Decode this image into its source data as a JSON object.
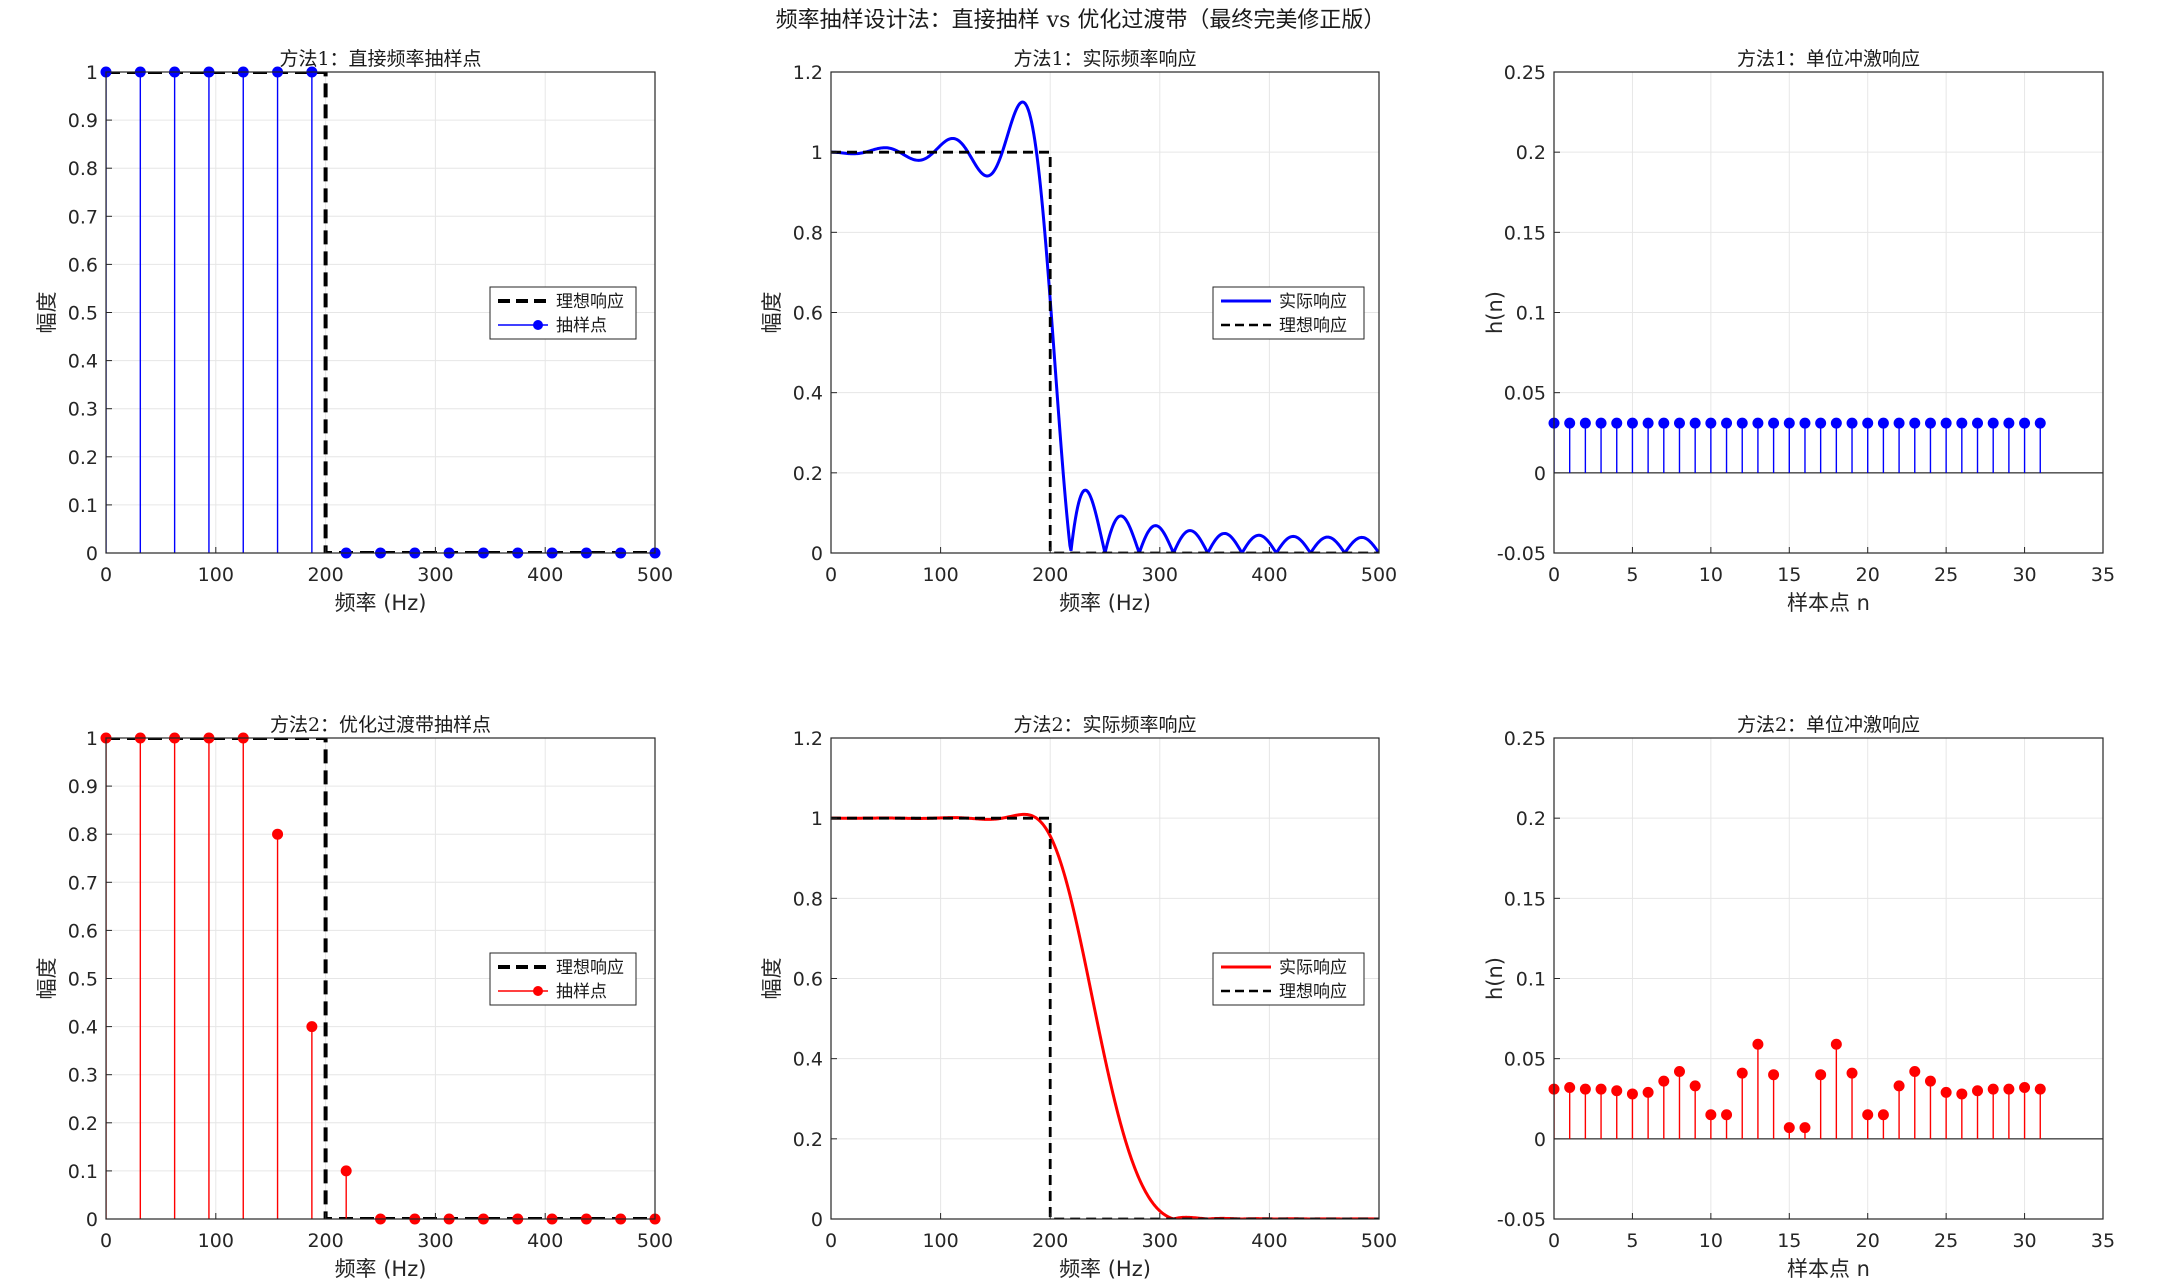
{
  "figure": {
    "suptitle": "频率抽样设计法：直接抽样 vs 优化过渡带（最终完美修正版）"
  },
  "chart_data": [
    {
      "id": "m1-samples",
      "type": "stem",
      "title": "方法1：直接频率抽样点",
      "xlabel": "频率 (Hz)",
      "ylabel": "幅度",
      "xlim": [
        0,
        500
      ],
      "ylim": [
        0,
        1
      ],
      "xticks": [
        0,
        100,
        200,
        300,
        400,
        500
      ],
      "yticks": [
        0,
        0.1,
        0.2,
        0.3,
        0.4,
        0.5,
        0.6,
        0.7,
        0.8,
        0.9,
        1
      ],
      "ytick_labels": [
        "0",
        "0.1",
        "0.2",
        "0.3",
        "0.4",
        "0.5",
        "0.6",
        "0.7",
        "0.8",
        "0.9",
        "1"
      ],
      "grid": true,
      "legend": {
        "placement": "right",
        "entries": [
          "理想响应",
          "抽样点"
        ]
      },
      "series": [
        {
          "name": "理想响应",
          "kind": "ideal",
          "x": [
            0,
            200,
            200,
            500
          ],
          "y": [
            1,
            1,
            0,
            0
          ],
          "color": "#000000"
        },
        {
          "name": "抽样点",
          "kind": "stem",
          "color": "#0000ff",
          "x": [
            0,
            31.25,
            62.5,
            93.75,
            125,
            156.25,
            187.5,
            218.75,
            250,
            281.25,
            312.5,
            343.75,
            375,
            406.25,
            437.5,
            468.75,
            500
          ],
          "y": [
            1,
            1,
            1,
            1,
            1,
            1,
            1,
            0,
            0,
            0,
            0,
            0,
            0,
            0,
            0,
            0,
            0
          ]
        }
      ]
    },
    {
      "id": "m1-response",
      "type": "line",
      "title": "方法1：实际频率响应",
      "xlabel": "频率 (Hz)",
      "ylabel": "幅度",
      "xlim": [
        0,
        500
      ],
      "ylim": [
        0,
        1.2
      ],
      "xticks": [
        0,
        100,
        200,
        300,
        400,
        500
      ],
      "yticks": [
        0,
        0.2,
        0.4,
        0.6,
        0.8,
        1,
        1.2
      ],
      "ytick_labels": [
        "0",
        "0.2",
        "0.4",
        "0.6",
        "0.8",
        "1",
        "1.2"
      ],
      "grid": true,
      "legend": {
        "placement": "right",
        "entries": [
          "实际响应",
          "理想响应"
        ]
      },
      "series": [
        {
          "name": "实际响应",
          "kind": "response",
          "color": "#0000ff",
          "transition": []
        },
        {
          "name": "理想响应",
          "kind": "ideal",
          "x": [
            0,
            200,
            200,
            500
          ],
          "y": [
            1,
            1,
            0,
            0
          ],
          "color": "#000000"
        }
      ]
    },
    {
      "id": "m1-impulse",
      "type": "stem",
      "title": "方法1：单位冲激响应",
      "xlabel": "样本点 n",
      "ylabel": "h(n)",
      "xlim": [
        0,
        35
      ],
      "ylim": [
        -0.05,
        0.25
      ],
      "xticks": [
        0,
        5,
        10,
        15,
        20,
        25,
        30,
        35
      ],
      "yticks": [
        -0.05,
        0,
        0.05,
        0.1,
        0.15,
        0.2,
        0.25
      ],
      "ytick_labels": [
        "-0.05",
        "0",
        "0.05",
        "0.1",
        "0.15",
        "0.2",
        "0.25"
      ],
      "grid": true,
      "baseline": true,
      "legend": null,
      "series": [
        {
          "name": "h(n)",
          "kind": "stem",
          "color": "#0000ff",
          "x": [
            0,
            1,
            2,
            3,
            4,
            5,
            6,
            7,
            8,
            9,
            10,
            11,
            12,
            13,
            14,
            15,
            16,
            17,
            18,
            19,
            20,
            21,
            22,
            23,
            24,
            25,
            26,
            27,
            28,
            29,
            30,
            31
          ],
          "y": [
            0.031,
            0.031,
            0.031,
            0.031,
            0.031,
            0.031,
            0.031,
            0.031,
            0.031,
            0.031,
            0.031,
            0.031,
            0.031,
            0.031,
            0.031,
            0.031,
            0.031,
            0.031,
            0.031,
            0.031,
            0.031,
            0.031,
            0.031,
            0.031,
            0.031,
            0.031,
            0.031,
            0.031,
            0.031,
            0.031,
            0.031,
            0.031
          ]
        }
      ]
    },
    {
      "id": "m2-samples",
      "type": "stem",
      "title": "方法2：优化过渡带抽样点",
      "xlabel": "频率 (Hz)",
      "ylabel": "幅度",
      "xlim": [
        0,
        500
      ],
      "ylim": [
        0,
        1
      ],
      "xticks": [
        0,
        100,
        200,
        300,
        400,
        500
      ],
      "yticks": [
        0,
        0.1,
        0.2,
        0.3,
        0.4,
        0.5,
        0.6,
        0.7,
        0.8,
        0.9,
        1
      ],
      "ytick_labels": [
        "0",
        "0.1",
        "0.2",
        "0.3",
        "0.4",
        "0.5",
        "0.6",
        "0.7",
        "0.8",
        "0.9",
        "1"
      ],
      "grid": true,
      "legend": {
        "placement": "right",
        "entries": [
          "理想响应",
          "抽样点"
        ]
      },
      "series": [
        {
          "name": "理想响应",
          "kind": "ideal",
          "x": [
            0,
            200,
            200,
            500
          ],
          "y": [
            1,
            1,
            0,
            0
          ],
          "color": "#000000"
        },
        {
          "name": "抽样点",
          "kind": "stem",
          "color": "#ff0000",
          "x": [
            0,
            31.25,
            62.5,
            93.75,
            125,
            156.25,
            187.5,
            218.75,
            250,
            281.25,
            312.5,
            343.75,
            375,
            406.25,
            437.5,
            468.75,
            500
          ],
          "y": [
            1,
            1,
            1,
            1,
            1,
            0.8,
            0.4,
            0.1,
            0,
            0,
            0,
            0,
            0,
            0,
            0,
            0,
            0
          ]
        }
      ]
    },
    {
      "id": "m2-response",
      "type": "line",
      "title": "方法2：实际频率响应",
      "xlabel": "频率 (Hz)",
      "ylabel": "幅度",
      "xlim": [
        0,
        500
      ],
      "ylim": [
        0,
        1.2
      ],
      "xticks": [
        0,
        100,
        200,
        300,
        400,
        500
      ],
      "yticks": [
        0,
        0.2,
        0.4,
        0.6,
        0.8,
        1,
        1.2
      ],
      "ytick_labels": [
        "0",
        "0.2",
        "0.4",
        "0.6",
        "0.8",
        "1",
        "1.2"
      ],
      "grid": true,
      "legend": {
        "placement": "right",
        "entries": [
          "实际响应",
          "理想响应"
        ]
      },
      "series": [
        {
          "name": "实际响应",
          "kind": "response",
          "color": "#ff0000",
          "transition": [
            0.8,
            0.4,
            0.1
          ]
        },
        {
          "name": "理想响应",
          "kind": "ideal",
          "x": [
            0,
            200,
            200,
            500
          ],
          "y": [
            1,
            1,
            0,
            0
          ],
          "color": "#000000"
        }
      ]
    },
    {
      "id": "m2-impulse",
      "type": "stem",
      "title": "方法2：单位冲激响应",
      "xlabel": "样本点 n",
      "ylabel": "h(n)",
      "xlim": [
        0,
        35
      ],
      "ylim": [
        -0.05,
        0.25
      ],
      "xticks": [
        0,
        5,
        10,
        15,
        20,
        25,
        30,
        35
      ],
      "yticks": [
        -0.05,
        0,
        0.05,
        0.1,
        0.15,
        0.2,
        0.25
      ],
      "ytick_labels": [
        "-0.05",
        "0",
        "0.05",
        "0.1",
        "0.15",
        "0.2",
        "0.25"
      ],
      "grid": true,
      "baseline": true,
      "legend": null,
      "series": [
        {
          "name": "h(n)",
          "kind": "stem",
          "color": "#ff0000",
          "x": [
            0,
            1,
            2,
            3,
            4,
            5,
            6,
            7,
            8,
            9,
            10,
            11,
            12,
            13,
            14,
            15,
            16,
            17,
            18,
            19,
            20,
            21,
            22,
            23,
            24,
            25,
            26,
            27,
            28,
            29,
            30,
            31
          ],
          "y": [
            0.031,
            0.032,
            0.031,
            0.031,
            0.03,
            0.028,
            0.029,
            0.036,
            0.042,
            0.033,
            0.015,
            0.015,
            0.041,
            0.059,
            0.04,
            0.007,
            0.007,
            0.04,
            0.059,
            0.041,
            0.015,
            0.015,
            0.033,
            0.042,
            0.036,
            0.029,
            0.028,
            0.03,
            0.031,
            0.031,
            0.032,
            0.031
          ]
        }
      ]
    }
  ]
}
